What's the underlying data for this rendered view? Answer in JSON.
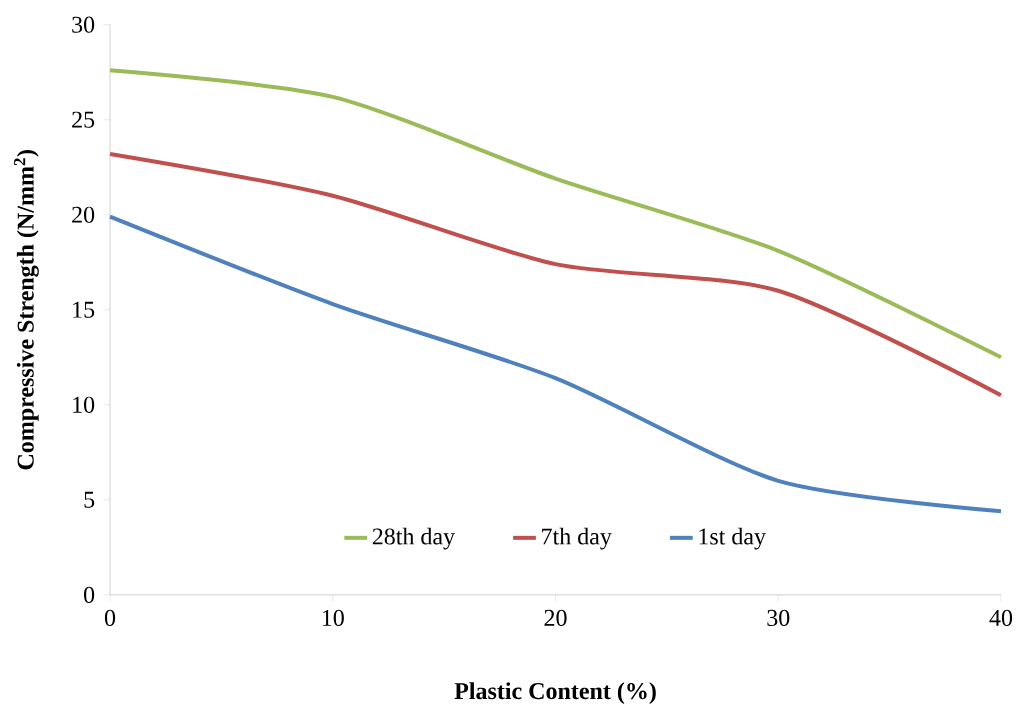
{
  "chart_data": {
    "type": "line",
    "xlabel": "Plastic Content (%)",
    "ylabel": "Compressive Strength (N/mm$^{2}$)",
    "x": [
      0,
      10,
      20,
      30,
      40
    ],
    "series": [
      {
        "name": "28th day",
        "color": "#9bbb59",
        "values": [
          27.6,
          26.2,
          21.9,
          18.1,
          12.5
        ]
      },
      {
        "name": "7th day",
        "color": "#c0504d",
        "values": [
          23.2,
          21.0,
          17.4,
          16.0,
          10.5
        ]
      },
      {
        "name": "1st day",
        "color": "#4f81bd",
        "values": [
          19.9,
          15.3,
          11.4,
          6.0,
          4.4
        ]
      }
    ],
    "xlim": [
      0,
      40
    ],
    "ylim": [
      0,
      30
    ],
    "xticks": [
      0,
      10,
      20,
      30,
      40
    ],
    "yticks": [
      0,
      5,
      10,
      15,
      20,
      25,
      30
    ],
    "grid": false,
    "legend": "bottom",
    "marker": "none",
    "line_style": "solid"
  }
}
